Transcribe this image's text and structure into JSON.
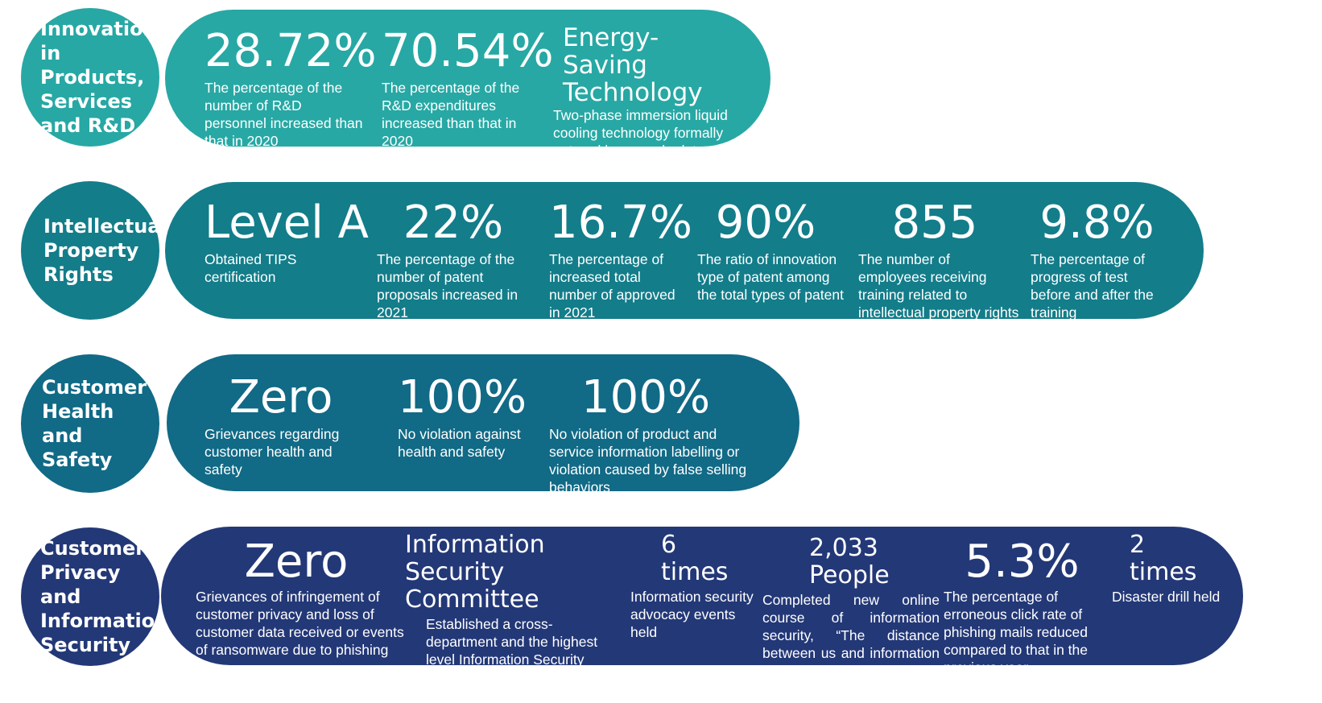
{
  "colors": {
    "row1": "#27a8a4",
    "row2": "#137d8a",
    "row3": "#116a86",
    "row4": "#233877"
  },
  "rows": [
    {
      "category": "Innovations in Products, Services and R&D",
      "stats": [
        {
          "value": "28.72%",
          "desc": "The percentage of the number of R&D personnel increased than that in 2020"
        },
        {
          "value": "70.54%",
          "desc": "The percentage of the R&D expenditures increased than that in 2020"
        },
        {
          "value": "Energy-Saving Technology",
          "desc": "Two-phase immersion liquid cooling technology formally entered hyperscale data centers"
        }
      ]
    },
    {
      "category": "Intellectual Property Rights",
      "stats": [
        {
          "value": "Level A",
          "desc": "Obtained TIPS certification"
        },
        {
          "value": "22%",
          "desc": "The percentage of the number of patent proposals increased in 2021"
        },
        {
          "value": "16.7%",
          "desc": "The percentage of increased total number of approved in 2021"
        },
        {
          "value": "90%",
          "desc": "The ratio of innovation type of patent among the total types of patent"
        },
        {
          "value": "855",
          "desc": "The number of employees receiving training related to intellectual property rights"
        },
        {
          "value": "9.8%",
          "desc": "The percentage of progress of test before and after the training"
        }
      ]
    },
    {
      "category": "Customer Health and Safety",
      "stats": [
        {
          "value": "Zero",
          "desc": "Grievances regarding customer health and safety"
        },
        {
          "value": "100%",
          "desc": "No violation against health and safety"
        },
        {
          "value": "100%",
          "desc": "No violation of product and service information labelling or violation caused by false selling behaviors"
        }
      ]
    },
    {
      "category": "Customer Privacy and Information Security",
      "stats": [
        {
          "value": "Zero",
          "desc": "Grievances of infringement of customer privacy and loss of customer data received or events of ransomware due to phishing"
        },
        {
          "value": "Information Security Committee",
          "desc": "Established a cross-department and the highest level Information Security Committee"
        },
        {
          "value": "6 times",
          "desc": "Information security advocacy events held"
        },
        {
          "value": "2,033 People",
          "desc": "Completed new online course of information security, “The distance between us and information security” in Taiwan"
        },
        {
          "value": "5.3%",
          "desc": "The percentage of erroneous click rate of phishing mails reduced compared to that in the previous year"
        },
        {
          "value": "2 times",
          "desc": "Disaster drill held"
        }
      ]
    }
  ]
}
